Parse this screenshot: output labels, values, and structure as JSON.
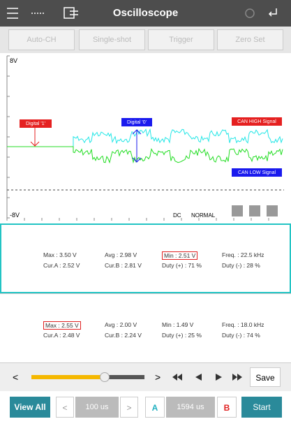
{
  "header": {
    "title": "Oscilloscope"
  },
  "buttons": [
    "Auto-CH",
    "Single-shot",
    "Trigger",
    "Zero Set"
  ],
  "scope": {
    "top_label": "8V",
    "bottom_label": "-8V",
    "marker_1": "Digital '1'",
    "marker_0": "Digital '0'",
    "can_high": "CAN HIGH Signal",
    "can_low": "CAN LOW Signal",
    "coupling": "DC",
    "mode": "NORMAL"
  },
  "panel_a": {
    "rows": [
      [
        "Max : 3.50 V",
        "Avg : 2.98 V",
        "Min : 2.51 V",
        "Freq. : 22.5 kHz"
      ],
      [
        "Cur.A : 2.52 V",
        "Cur.B : 2.81 V",
        "Duty (+) : 71 %",
        "Duty (-) : 28 %"
      ]
    ]
  },
  "panel_b": {
    "rows": [
      [
        "Max : 2.55 V",
        "Avg : 2.00 V",
        "Min : 1.49 V",
        "Freq. : 18.0 kHz"
      ],
      [
        "Cur.A : 2.48 V",
        "Cur.B : 2.24 V",
        "Duty (+) : 25 %",
        "Duty (-) : 74 %"
      ]
    ]
  },
  "controls": {
    "prev": "<",
    "next": ">",
    "save": "Save",
    "view_all": "View All",
    "step_back": "<",
    "step_fwd": ">",
    "time_a": "100 us",
    "cursor_a": "A",
    "time_b": "1594 us",
    "cursor_b": "B",
    "start": "Start"
  }
}
